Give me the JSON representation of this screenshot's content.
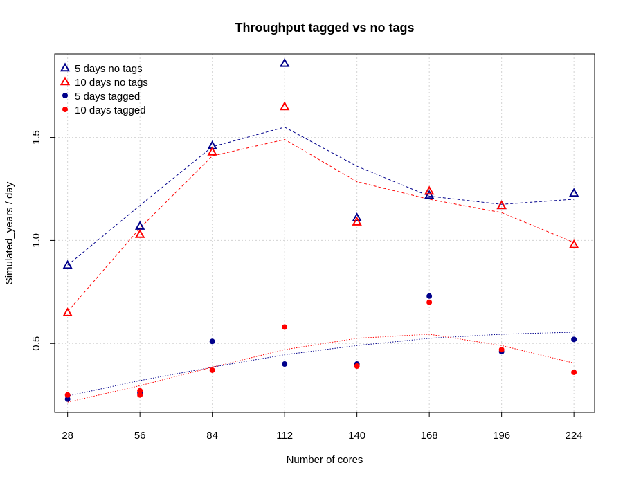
{
  "chart_data": {
    "type": "scatter",
    "title": "Throughput tagged vs no tags",
    "xlabel": "Number of cores",
    "ylabel": "Simulated_years / day",
    "xlim": [
      23,
      232
    ],
    "ylim": [
      0.165,
      1.905
    ],
    "xticks": [
      28,
      56,
      84,
      112,
      140,
      168,
      196,
      224
    ],
    "xtick_labels": [
      "28",
      "56",
      "84",
      "112",
      "140",
      "168",
      "196",
      "224"
    ],
    "yticks": [
      0.5,
      1.0,
      1.5
    ],
    "ytick_labels": [
      "0.5",
      "1.0",
      "1.5"
    ],
    "grid": true,
    "legend_position": "top-left",
    "series": [
      {
        "name": "5 days no tags",
        "marker": "triangle",
        "color": "#00008b",
        "points": [
          [
            28,
            0.88
          ],
          [
            56,
            1.07
          ],
          [
            84,
            1.46
          ],
          [
            112,
            1.86
          ],
          [
            140,
            1.11
          ],
          [
            168,
            1.22
          ],
          [
            196,
            1.17
          ],
          [
            224,
            1.23
          ]
        ],
        "fit": [
          [
            28,
            0.88
          ],
          [
            56,
            1.17
          ],
          [
            84,
            1.455
          ],
          [
            112,
            1.55
          ],
          [
            140,
            1.36
          ],
          [
            168,
            1.215
          ],
          [
            196,
            1.175
          ],
          [
            224,
            1.2
          ]
        ],
        "fit_style": "dashed"
      },
      {
        "name": "10 days no tags",
        "marker": "triangle",
        "color": "#ff0000",
        "points": [
          [
            28,
            0.65
          ],
          [
            56,
            1.03
          ],
          [
            84,
            1.43
          ],
          [
            112,
            1.65
          ],
          [
            140,
            1.09
          ],
          [
            168,
            1.24
          ],
          [
            196,
            1.17
          ],
          [
            224,
            0.98
          ]
        ],
        "fit": [
          [
            28,
            0.655
          ],
          [
            56,
            1.06
          ],
          [
            84,
            1.41
          ],
          [
            112,
            1.49
          ],
          [
            140,
            1.285
          ],
          [
            168,
            1.2
          ],
          [
            196,
            1.135
          ],
          [
            224,
            0.99
          ]
        ],
        "fit_style": "dashed"
      },
      {
        "name": "5 days tagged",
        "marker": "dot",
        "color": "#00008b",
        "points": [
          [
            28,
            0.23
          ],
          [
            56,
            0.26
          ],
          [
            84,
            0.51
          ],
          [
            112,
            0.4
          ],
          [
            140,
            0.4
          ],
          [
            168,
            0.73
          ],
          [
            196,
            0.46
          ],
          [
            224,
            0.52
          ]
        ],
        "fit": [
          [
            28,
            0.245
          ],
          [
            56,
            0.32
          ],
          [
            84,
            0.385
          ],
          [
            112,
            0.445
          ],
          [
            140,
            0.49
          ],
          [
            168,
            0.525
          ],
          [
            196,
            0.545
          ],
          [
            224,
            0.555
          ]
        ],
        "fit_style": "dotted"
      },
      {
        "name": "10 days tagged",
        "marker": "dot",
        "color": "#ff0000",
        "points": [
          [
            28,
            0.25
          ],
          [
            56,
            0.25
          ],
          [
            56,
            0.27
          ],
          [
            84,
            0.37
          ],
          [
            112,
            0.58
          ],
          [
            140,
            0.39
          ],
          [
            168,
            0.7
          ],
          [
            196,
            0.47
          ],
          [
            224,
            0.36
          ]
        ],
        "fit": [
          [
            28,
            0.215
          ],
          [
            56,
            0.295
          ],
          [
            84,
            0.385
          ],
          [
            112,
            0.47
          ],
          [
            140,
            0.525
          ],
          [
            168,
            0.545
          ],
          [
            196,
            0.49
          ],
          [
            224,
            0.405
          ]
        ],
        "fit_style": "dotted"
      }
    ]
  }
}
